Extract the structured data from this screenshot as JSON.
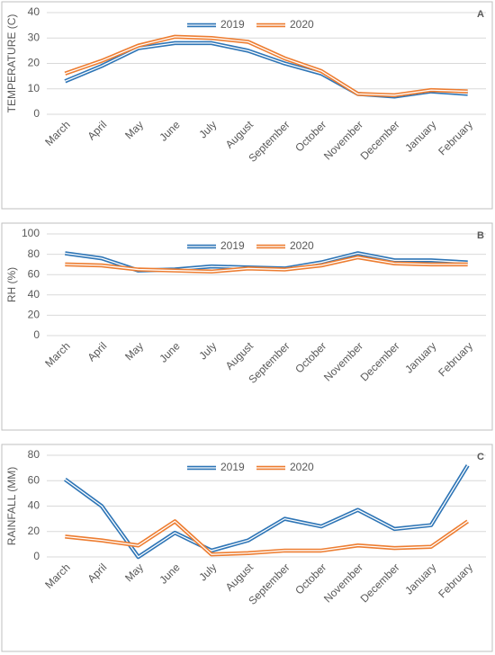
{
  "chart_data": [
    {
      "type": "line",
      "label": "A",
      "ylabel": "TEMPERATURE (C)",
      "categories": [
        "March",
        "April",
        "May",
        "June",
        "July",
        "August",
        "September",
        "October",
        "November",
        "December",
        "January",
        "February"
      ],
      "series": [
        {
          "name": "2019",
          "color": "#2e75b6",
          "values": [
            13,
            19,
            26,
            28,
            28,
            25,
            20,
            16,
            8,
            7,
            9,
            8
          ]
        },
        {
          "name": "2020",
          "color": "#ed7d31",
          "values": [
            16,
            21,
            27,
            30.5,
            30,
            28.5,
            22,
            17,
            8,
            7.5,
            9.5,
            9
          ]
        }
      ],
      "ylim": [
        0,
        40
      ],
      "yticks": [
        0,
        10,
        20,
        30,
        40
      ],
      "grid": true
    },
    {
      "type": "line",
      "label": "B",
      "ylabel": "RH (%)",
      "categories": [
        "March",
        "April",
        "May",
        "June",
        "July",
        "August",
        "September",
        "October",
        "November",
        "December",
        "January",
        "February"
      ],
      "series": [
        {
          "name": "2019",
          "color": "#2e75b6",
          "values": [
            81,
            76,
            64,
            65,
            68,
            67,
            66,
            72,
            81,
            74,
            74,
            72
          ]
        },
        {
          "name": "2020",
          "color": "#ed7d31",
          "values": [
            70,
            69,
            65,
            64,
            63,
            66,
            65,
            69,
            77,
            71,
            70,
            70
          ]
        }
      ],
      "ylim": [
        0,
        100
      ],
      "yticks": [
        0,
        20,
        40,
        60,
        80,
        100
      ],
      "grid": true
    },
    {
      "type": "line",
      "label": "C",
      "ylabel": "RAINFALL (MM)",
      "categories": [
        "March",
        "April",
        "May",
        "June",
        "July",
        "August",
        "September",
        "October",
        "November",
        "December",
        "January",
        "February"
      ],
      "series": [
        {
          "name": "2019",
          "color": "#2e75b6",
          "values": [
            61,
            40,
            0,
            19,
            5,
            13,
            30,
            24,
            37,
            22,
            25,
            72
          ]
        },
        {
          "name": "2020",
          "color": "#ed7d31",
          "values": [
            16,
            13,
            9,
            28,
            2,
            3,
            5,
            5,
            9,
            7,
            8,
            28
          ]
        }
      ],
      "ylim": [
        0,
        80
      ],
      "yticks": [
        0,
        20,
        40,
        60,
        80
      ],
      "grid": true
    }
  ]
}
